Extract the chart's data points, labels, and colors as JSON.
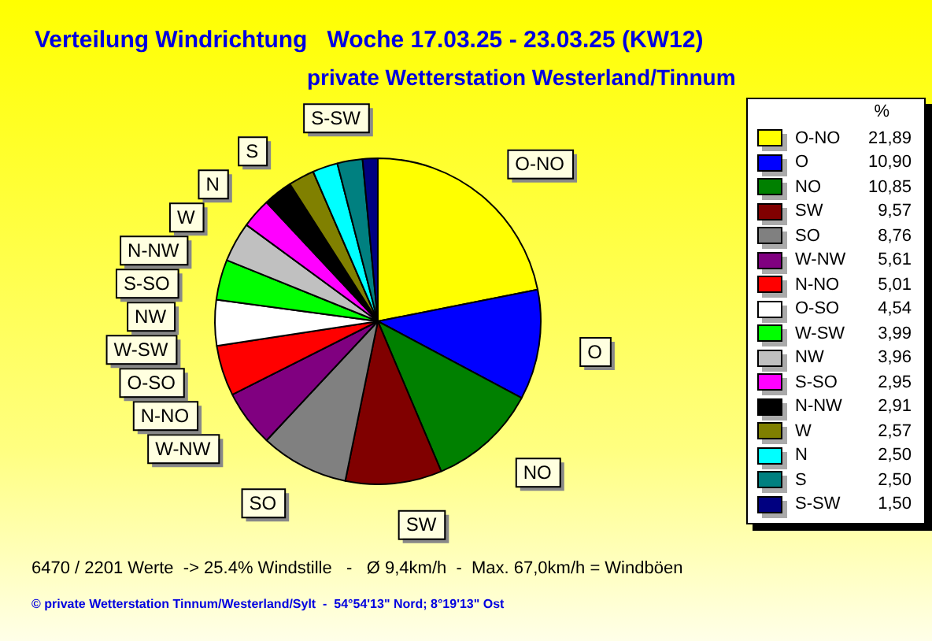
{
  "chart_data": {
    "type": "pie",
    "title": "Verteilung Windrichtung   Woche 17.03.25 - 23.03.25 (KW12)",
    "subtitle": "private Wetterstation Westerland/Tinnum",
    "categories": [
      "O-NO",
      "O",
      "NO",
      "SW",
      "SO",
      "W-NW",
      "N-NO",
      "O-SO",
      "W-SW",
      "NW",
      "S-SO",
      "N-NW",
      "W",
      "N",
      "S",
      "S-SW"
    ],
    "values": [
      21.89,
      10.9,
      10.85,
      9.57,
      8.76,
      5.61,
      5.01,
      4.54,
      3.99,
      3.96,
      2.95,
      2.91,
      2.57,
      2.5,
      2.5,
      1.5
    ],
    "colors": [
      "#ffff00",
      "#0000ff",
      "#008000",
      "#800000",
      "#808080",
      "#800080",
      "#ff0000",
      "#ffffff",
      "#00ff00",
      "#c0c0c0",
      "#ff00ff",
      "#000000",
      "#808000",
      "#00ffff",
      "#008080",
      "#000080"
    ],
    "value_labels": [
      "21,89",
      "10,90",
      "10,85",
      "9,57",
      "8,76",
      "5,61",
      "5,01",
      "4,54",
      "3,99",
      "3,96",
      "2,95",
      "2,91",
      "2,57",
      "2,50",
      "2,50",
      "1,50"
    ],
    "legend": "right",
    "legend_title": "%",
    "annotations": [
      "6470 / 2201 Werte  -> 25.4% Windstille   -   Ø 9,4km/h  -  Max. 67,0km/h = Windböen",
      "© private Wetterstation Tinnum/Westerland/Sylt  -  54°54'13\" Nord; 8°19'13\" Ost"
    ]
  }
}
